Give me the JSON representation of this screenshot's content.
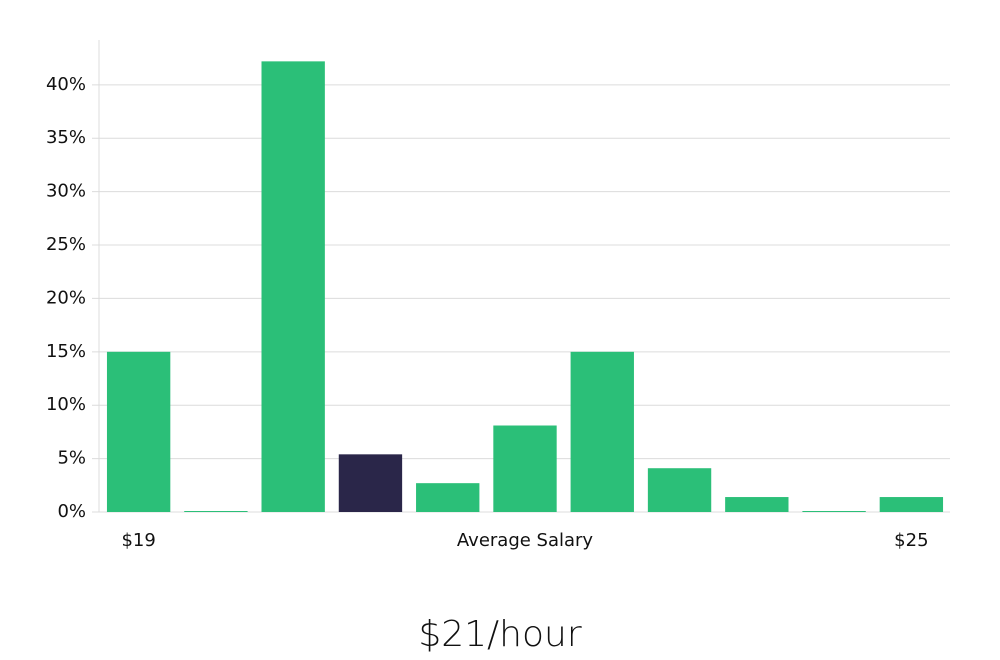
{
  "chart_data": {
    "type": "bar",
    "title": "$21/hour",
    "categories": [
      "$19",
      null,
      null,
      null,
      null,
      "Average Salary",
      null,
      null,
      null,
      null,
      "$25"
    ],
    "values": [
      15,
      0,
      42.2,
      5.4,
      2.7,
      8.1,
      15,
      4.1,
      1.4,
      0,
      1.4
    ],
    "colors": [
      "#2bbf78",
      "#2bbf78",
      "#2bbf78",
      "#2a2649",
      "#2bbf78",
      "#2bbf78",
      "#2bbf78",
      "#2bbf78",
      "#2bbf78",
      "#2bbf78",
      "#2bbf78"
    ],
    "ylim": [
      0,
      44.2
    ],
    "yticks": [
      {
        "value": 0,
        "label": "0%"
      },
      {
        "value": 5,
        "label": "5%"
      },
      {
        "value": 10,
        "label": "10%"
      },
      {
        "value": 15,
        "label": "15%"
      },
      {
        "value": 20,
        "label": "20%"
      },
      {
        "value": 25,
        "label": "25%"
      },
      {
        "value": 30,
        "label": "30%"
      },
      {
        "value": 35,
        "label": "35%"
      },
      {
        "value": 40,
        "label": "40%"
      }
    ],
    "grid": true
  }
}
